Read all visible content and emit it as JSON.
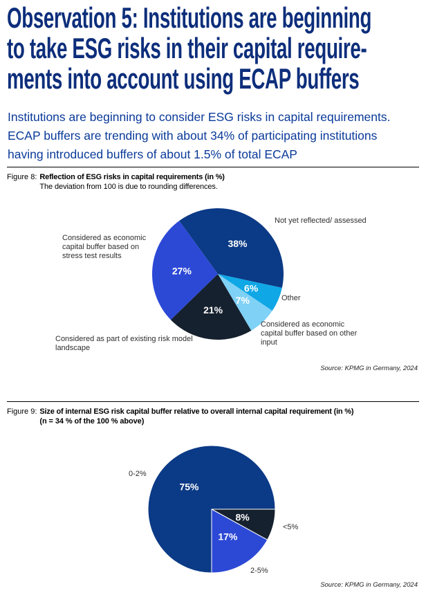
{
  "page": {
    "headline_lines": [
      "Observation 5: Institutions are beginning",
      "to take ESG risks in their capital require-",
      "ments into account using ECAP buffers"
    ],
    "intro_lines": [
      "Institutions are beginning to consider ESG risks in capital requirements.",
      "ECAP buffers are trending with about 34% of participating institutions",
      "having introduced buffers of about 1.5% of total ECAP"
    ],
    "colors": {
      "headline_navy": "#0d2e7b",
      "intro_blue": "#0a3a99",
      "pie_navy": "#0b3a86",
      "pie_cobalt": "#2c49d6",
      "pie_dark_navy": "#16212f",
      "pie_cyan": "#0fa7e6",
      "pie_light_blue": "#7fd1f6"
    }
  },
  "figure8": {
    "label": "Figure 8:",
    "title": "Reflection of ESG risks in capital requirements (in %)",
    "subtitle": "The deviation from 100 is due to rounding differences.",
    "source": "Source: KPMG in Germany, 2024"
  },
  "figure9": {
    "label": "Figure 9:",
    "title": "Size of internal ESG risk capital buffer relative to overall internal capital requirement (in %)",
    "subtitle": "(n = 34 % of the 100 % above)",
    "source": "Source: KPMG in Germany, 2024"
  },
  "chart_data": [
    {
      "type": "pie",
      "figure": "Figure 8",
      "title": "Reflection of ESG risks in capital requirements (in %)",
      "unit": "%",
      "start_angle_deg": -36,
      "note": "Slice values sum to 99; deviation from 100 is due to rounding differences.",
      "slices": [
        {
          "label": "Not yet reflected/ assessed",
          "value": 38,
          "color": "#0b3a86"
        },
        {
          "label": "Other",
          "value": 6,
          "color": "#0fa7e6"
        },
        {
          "label": "Considered as economic capital buffer based on other input",
          "value": 7,
          "color": "#7fd1f6"
        },
        {
          "label": "Considered as part of existing risk model landscape",
          "value": 21,
          "color": "#16212f"
        },
        {
          "label": "Considered as economic capital buffer based on stress test results",
          "value": 27,
          "color": "#2c49d6"
        }
      ]
    },
    {
      "type": "pie",
      "figure": "Figure 9",
      "title": "Size of internal ESG risk capital buffer relative to overall internal capital requirement (in %)",
      "unit": "%",
      "start_angle_deg": 90,
      "slices": [
        {
          "label": "<5%",
          "value": 8,
          "color": "#16212f"
        },
        {
          "label": "2-5%",
          "value": 17,
          "color": "#2c49d6"
        },
        {
          "label": "0-2%",
          "value": 75,
          "color": "#0b3a86"
        }
      ]
    }
  ]
}
